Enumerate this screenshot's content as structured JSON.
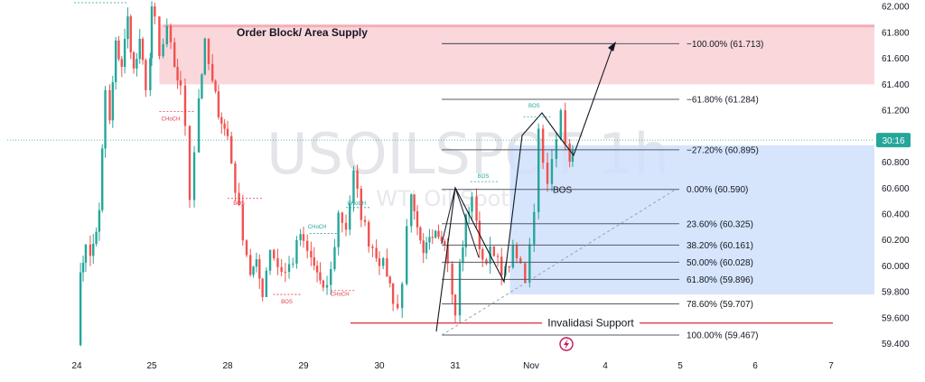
{
  "chart_data": {
    "type": "candlestick",
    "symbol": "USOILSPOT",
    "interval": "1h",
    "subtitle": "WTI Oil Spot",
    "ylim": [
      59.3,
      62.05
    ],
    "y_ticks": [
      "62.000",
      "61.800",
      "61.600",
      "61.400",
      "61.200",
      "61.000",
      "60.800",
      "60.600",
      "60.400",
      "60.200",
      "60.000",
      "59.800",
      "59.600",
      "59.400"
    ],
    "y_tick_values": [
      62.0,
      61.8,
      61.6,
      61.4,
      61.2,
      61.0,
      60.8,
      60.6,
      60.4,
      60.2,
      60.0,
      59.8,
      59.6,
      59.4
    ],
    "x_ticks": [
      {
        "label": "24",
        "day": 0
      },
      {
        "label": "25",
        "day": 1
      },
      {
        "label": "28",
        "day": 2
      },
      {
        "label": "29",
        "day": 3
      },
      {
        "label": "30",
        "day": 4
      },
      {
        "label": "31",
        "day": 5
      },
      {
        "label": "Nov",
        "day": 6
      },
      {
        "label": "4",
        "day": 7
      },
      {
        "label": "5",
        "day": 8
      },
      {
        "label": "6",
        "day": 9
      },
      {
        "label": "7",
        "day": 10
      }
    ],
    "current_price_value": 60.97,
    "current_price_label": "30:16",
    "zones": [
      {
        "name": "Order Block/ Area Supply",
        "label": "Order Block/ Area Supply",
        "from": 61.4,
        "to": 61.86,
        "color": "#f8c9cf"
      },
      {
        "name": "demand",
        "label": "",
        "from": 59.78,
        "to": 60.93,
        "color": "#cfe0fb"
      }
    ],
    "fib_levels": [
      {
        "value": 61.713,
        "label": "−100.00% (61.713)"
      },
      {
        "value": 61.284,
        "label": "−61.80% (61.284)"
      },
      {
        "value": 60.895,
        "label": "−27.20% (60.895)"
      },
      {
        "value": 60.59,
        "label": "0.00% (60.590)"
      },
      {
        "value": 60.325,
        "label": "23.60% (60.325)"
      },
      {
        "value": 60.161,
        "label": "38.20% (60.161)"
      },
      {
        "value": 60.028,
        "label": "50.00% (60.028)"
      },
      {
        "value": 59.896,
        "label": "61.80% (59.896)"
      },
      {
        "value": 59.707,
        "label": "78.60% (59.707)"
      },
      {
        "value": 59.467,
        "label": "100.00% (59.467)"
      }
    ],
    "invalidation": {
      "value": 59.56,
      "label": "Invalidasi Support",
      "color": "#e23b4a"
    },
    "annotations": {
      "bos_main": "BOS",
      "markers": [
        {
          "text": "CHoCH",
          "color": "#e23b4a"
        },
        {
          "text": "BOS",
          "color": "#e23b4a"
        },
        {
          "text": "BOS",
          "color": "#e23b4a"
        },
        {
          "text": "CHoCH",
          "color": "#26a69a"
        },
        {
          "text": "CHoCH",
          "color": "#26a69a"
        },
        {
          "text": "CHoCH",
          "color": "#e23b4a"
        },
        {
          "text": "BOS",
          "color": "#26a69a"
        },
        {
          "text": "BOS",
          "color": "#26a69a"
        }
      ]
    },
    "series": [
      {
        "name": "",
        "type": "candlestick",
        "anchors": [
          [
            0.0,
            59.45
          ],
          [
            0.05,
            59.9
          ],
          [
            0.12,
            60.2
          ],
          [
            0.18,
            60.05
          ],
          [
            0.3,
            60.4
          ],
          [
            0.38,
            61.35
          ],
          [
            0.44,
            61.1
          ],
          [
            0.52,
            61.7
          ],
          [
            0.6,
            61.55
          ],
          [
            0.68,
            61.9
          ],
          [
            0.76,
            61.5
          ],
          [
            0.84,
            61.7
          ],
          [
            0.92,
            61.4
          ],
          [
            0.98,
            61.6
          ],
          [
            1.0,
            61.95
          ],
          [
            1.04,
            61.9
          ],
          [
            1.1,
            61.6
          ],
          [
            1.2,
            61.8
          ],
          [
            1.3,
            61.55
          ],
          [
            1.38,
            61.35
          ],
          [
            1.44,
            61.1
          ],
          [
            1.5,
            60.55
          ],
          [
            1.56,
            60.9
          ],
          [
            1.62,
            61.3
          ],
          [
            1.7,
            61.7
          ],
          [
            1.8,
            61.4
          ],
          [
            1.88,
            61.2
          ],
          [
            1.96,
            61.05
          ],
          [
            2.0,
            61.0
          ],
          [
            2.1,
            60.6
          ],
          [
            2.2,
            60.25
          ],
          [
            2.3,
            59.95
          ],
          [
            2.38,
            60.0
          ],
          [
            2.46,
            59.8
          ],
          [
            2.56,
            60.15
          ],
          [
            2.66,
            60.0
          ],
          [
            2.76,
            59.95
          ],
          [
            2.86,
            60.05
          ],
          [
            2.96,
            60.25
          ],
          [
            3.0,
            60.15
          ],
          [
            3.1,
            60.05
          ],
          [
            3.18,
            59.95
          ],
          [
            3.26,
            59.78
          ],
          [
            3.36,
            59.95
          ],
          [
            3.46,
            60.4
          ],
          [
            3.56,
            60.3
          ],
          [
            3.66,
            60.7
          ],
          [
            3.76,
            60.4
          ],
          [
            3.86,
            60.2
          ],
          [
            3.96,
            60.1
          ],
          [
            4.0,
            60.05
          ],
          [
            4.1,
            59.95
          ],
          [
            4.18,
            59.75
          ],
          [
            4.24,
            59.68
          ],
          [
            4.3,
            59.85
          ],
          [
            4.36,
            60.35
          ],
          [
            4.42,
            60.5
          ],
          [
            4.5,
            60.25
          ],
          [
            4.58,
            60.05
          ],
          [
            4.66,
            60.25
          ],
          [
            4.74,
            60.3
          ],
          [
            4.82,
            60.25
          ],
          [
            4.9,
            60.05
          ],
          [
            4.96,
            59.75
          ],
          [
            5.0,
            59.62
          ],
          [
            5.06,
            60.0
          ],
          [
            5.14,
            60.35
          ],
          [
            5.22,
            60.55
          ],
          [
            5.28,
            60.3
          ],
          [
            5.36,
            60.05
          ],
          [
            5.46,
            60.1
          ],
          [
            5.56,
            60.02
          ],
          [
            5.66,
            59.95
          ],
          [
            5.76,
            60.1
          ],
          [
            5.86,
            60.0
          ],
          [
            5.92,
            59.9
          ],
          [
            5.98,
            60.2
          ],
          [
            6.04,
            60.45
          ],
          [
            6.1,
            61.05
          ],
          [
            6.16,
            60.85
          ],
          [
            6.22,
            60.6
          ],
          [
            6.28,
            60.8
          ],
          [
            6.34,
            60.95
          ],
          [
            6.4,
            61.2
          ],
          [
            6.46,
            61.0
          ],
          [
            6.52,
            60.85
          ],
          [
            6.56,
            60.9
          ]
        ]
      }
    ]
  }
}
